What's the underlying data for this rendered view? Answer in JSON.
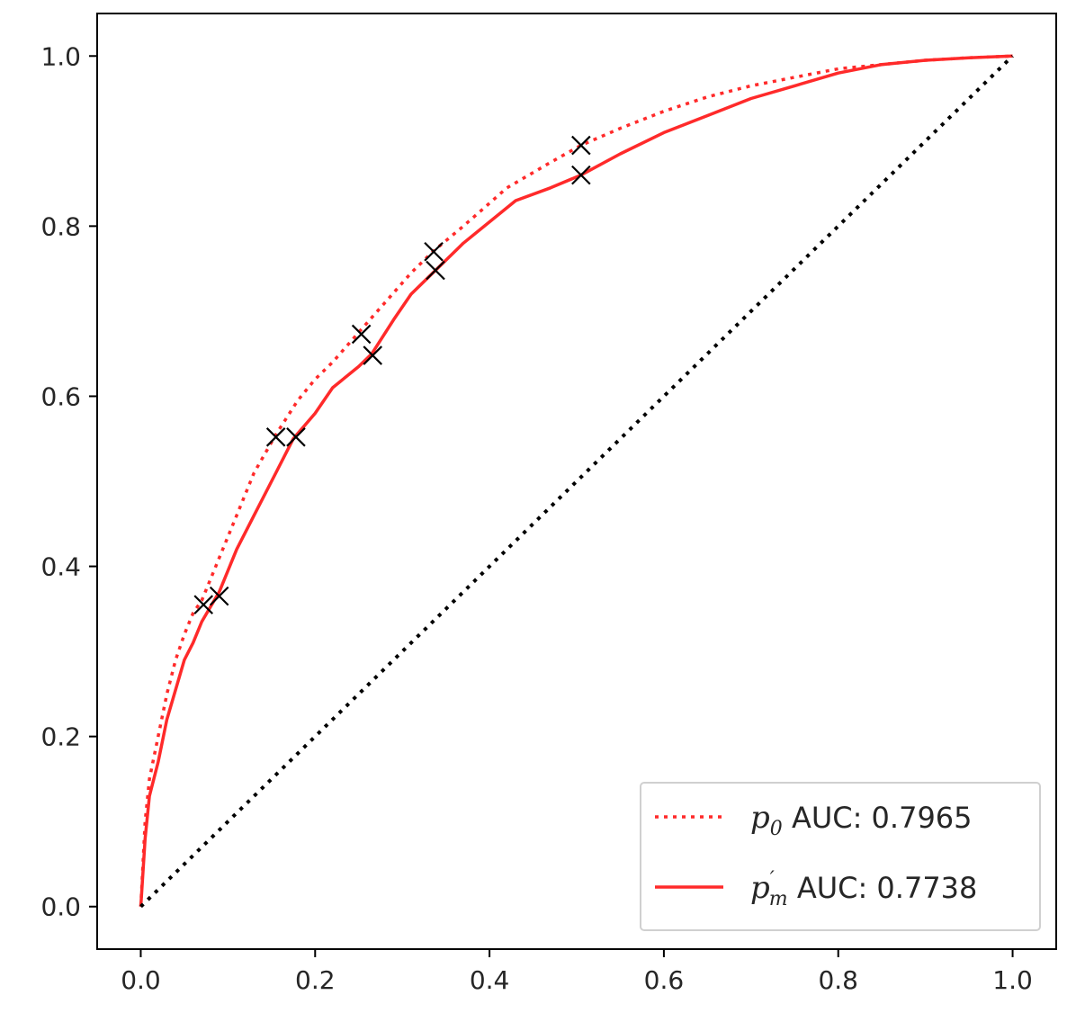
{
  "chart_data": {
    "type": "line",
    "title": "",
    "xlabel": "",
    "ylabel": "",
    "xlim": [
      -0.05,
      1.05
    ],
    "ylim": [
      -0.05,
      1.05
    ],
    "xticks": [
      "0.0",
      "0.2",
      "0.4",
      "0.6",
      "0.8",
      "1.0"
    ],
    "yticks": [
      "0.0",
      "0.2",
      "0.4",
      "0.6",
      "0.8",
      "1.0"
    ],
    "grid": false,
    "legend_position": "bottom-right",
    "series": [
      {
        "id": "p0",
        "legend_symbol": "p",
        "legend_subscript": "0",
        "legend_text": " AUC: 0.7965",
        "color": "#ff2a2a",
        "style": "dotted",
        "x": [
          0.0,
          0.005,
          0.01,
          0.02,
          0.03,
          0.04,
          0.05,
          0.06,
          0.07,
          0.09,
          0.11,
          0.13,
          0.155,
          0.18,
          0.2,
          0.22,
          0.25,
          0.28,
          0.31,
          0.335,
          0.37,
          0.42,
          0.47,
          0.505,
          0.55,
          0.6,
          0.65,
          0.7,
          0.75,
          0.8,
          0.85,
          0.9,
          0.95,
          1.0
        ],
        "y": [
          0.0,
          0.1,
          0.15,
          0.2,
          0.25,
          0.29,
          0.32,
          0.345,
          0.36,
          0.41,
          0.46,
          0.51,
          0.555,
          0.595,
          0.62,
          0.64,
          0.675,
          0.71,
          0.745,
          0.77,
          0.8,
          0.845,
          0.875,
          0.895,
          0.915,
          0.935,
          0.952,
          0.965,
          0.975,
          0.985,
          0.99,
          0.995,
          0.998,
          1.0
        ]
      },
      {
        "id": "pm",
        "legend_symbol": "p",
        "legend_prime": "′",
        "legend_subscript": "m",
        "legend_text": " AUC: 0.7738",
        "color": "#ff2a2a",
        "style": "solid",
        "x": [
          0.0,
          0.005,
          0.01,
          0.02,
          0.03,
          0.04,
          0.05,
          0.06,
          0.07,
          0.09,
          0.11,
          0.13,
          0.155,
          0.175,
          0.2,
          0.22,
          0.25,
          0.265,
          0.29,
          0.31,
          0.335,
          0.37,
          0.43,
          0.47,
          0.505,
          0.55,
          0.6,
          0.65,
          0.7,
          0.75,
          0.8,
          0.85,
          0.9,
          0.95,
          1.0
        ],
        "y": [
          0.0,
          0.08,
          0.13,
          0.17,
          0.22,
          0.255,
          0.29,
          0.31,
          0.335,
          0.37,
          0.42,
          0.46,
          0.51,
          0.55,
          0.58,
          0.61,
          0.635,
          0.65,
          0.69,
          0.72,
          0.745,
          0.78,
          0.83,
          0.845,
          0.86,
          0.885,
          0.91,
          0.93,
          0.95,
          0.965,
          0.98,
          0.99,
          0.995,
          0.998,
          1.0
        ]
      },
      {
        "id": "chance",
        "color": "#000000",
        "style": "dotted",
        "x": [
          0.0,
          1.0
        ],
        "y": [
          0.0,
          1.0
        ]
      }
    ],
    "markers": [
      {
        "x": 0.072,
        "y": 0.355
      },
      {
        "x": 0.09,
        "y": 0.365
      },
      {
        "x": 0.155,
        "y": 0.552
      },
      {
        "x": 0.178,
        "y": 0.552
      },
      {
        "x": 0.253,
        "y": 0.673
      },
      {
        "x": 0.266,
        "y": 0.648
      },
      {
        "x": 0.336,
        "y": 0.77
      },
      {
        "x": 0.338,
        "y": 0.748
      },
      {
        "x": 0.505,
        "y": 0.895
      },
      {
        "x": 0.505,
        "y": 0.86
      }
    ],
    "marker_color": "#000000"
  }
}
